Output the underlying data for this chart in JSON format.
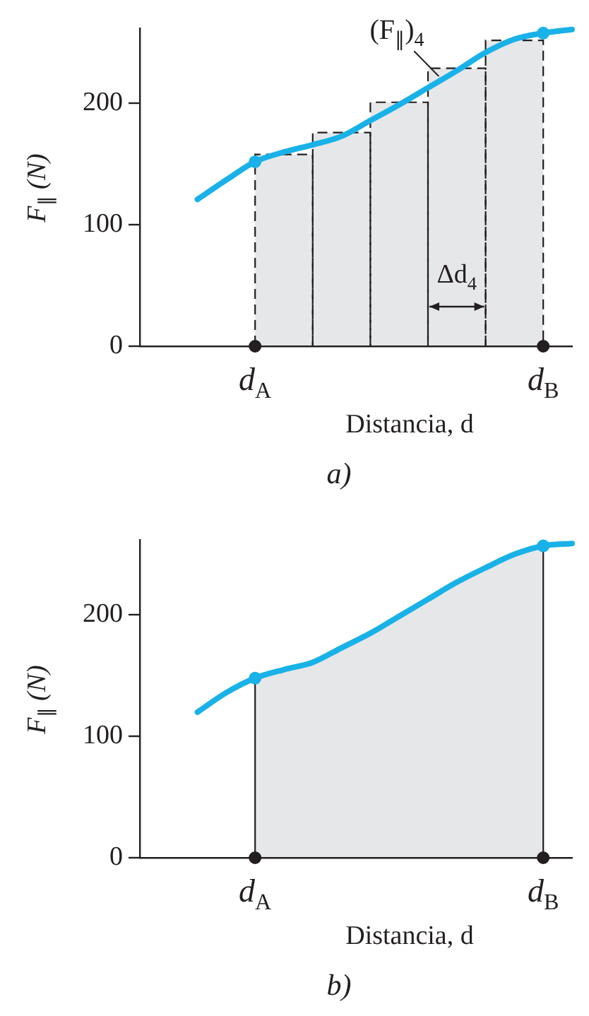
{
  "chart_data": [
    {
      "type": "line",
      "xlabel": "Distancia, d",
      "ylabel": "F$_{∥}$ (N)",
      "categories": [
        null,
        null,
        null,
        null,
        "d$_{A}$",
        null,
        null,
        null,
        null,
        null,
        null,
        null,
        null,
        null,
        "d$_{B}$",
        null
      ],
      "ylim": [
        0,
        262
      ],
      "yticks": [
        0,
        100,
        200
      ],
      "grid": false,
      "legend": false,
      "series": [
        {
          "type": "bar",
          "color": "#e6e7e9",
          "line_style": "dashed",
          "values": [
            null,
            null,
            null,
            null,
            null,
            158,
            null,
            176,
            null,
            201,
            null,
            229,
            null,
            252,
            null,
            null
          ]
        },
        {
          "color": "#19b2e8",
          "values": [
            null,
            null,
            121,
            137,
            152,
            160,
            166,
            173,
            186,
            199,
            213,
            227,
            242,
            253,
            258,
            261
          ]
        },
        {
          "type": "scatter",
          "color": "#19b2e8",
          "marker": "circle",
          "values": [
            null,
            null,
            null,
            null,
            152,
            null,
            null,
            null,
            null,
            null,
            null,
            null,
            null,
            null,
            258,
            null
          ]
        },
        {
          "type": "scatter",
          "color": "#231f20",
          "marker": "circle",
          "values": [
            null,
            null,
            null,
            null,
            0,
            null,
            null,
            null,
            null,
            null,
            null,
            null,
            null,
            null,
            0,
            null
          ]
        }
      ],
      "annotations": [
        "(F$_{∥}$)$_{4}$",
        "Δd$_{4}$",
        "a)"
      ]
    },
    {
      "type": "line",
      "xlabel": "Distancia, d",
      "ylabel": "F$_{∥}$ (N)",
      "categories": [
        null,
        null,
        null,
        null,
        "d$_{A}$",
        null,
        null,
        null,
        null,
        null,
        null,
        null,
        null,
        null,
        "d$_{B}$",
        null
      ],
      "ylim": [
        0,
        262
      ],
      "yticks": [
        0,
        100,
        200
      ],
      "grid": false,
      "legend": false,
      "series": [
        {
          "type": "area",
          "color": "#e6e7e9",
          "values": [
            null,
            null,
            null,
            null,
            148,
            155,
            161,
            173,
            185,
            199,
            213,
            227,
            239,
            250,
            257,
            null
          ]
        },
        {
          "color": "#19b2e8",
          "values": [
            null,
            null,
            120,
            136,
            148,
            155,
            161,
            173,
            185,
            199,
            213,
            227,
            239,
            250,
            257,
            259
          ]
        },
        {
          "type": "scatter",
          "color": "#19b2e8",
          "marker": "circle",
          "values": [
            null,
            null,
            null,
            null,
            148,
            null,
            null,
            null,
            null,
            null,
            null,
            null,
            null,
            null,
            257,
            null
          ]
        },
        {
          "type": "scatter",
          "color": "#231f20",
          "marker": "circle",
          "values": [
            null,
            null,
            null,
            null,
            0,
            null,
            null,
            null,
            null,
            null,
            null,
            null,
            null,
            null,
            0,
            null
          ]
        }
      ],
      "annotations": [
        "b)"
      ]
    }
  ]
}
